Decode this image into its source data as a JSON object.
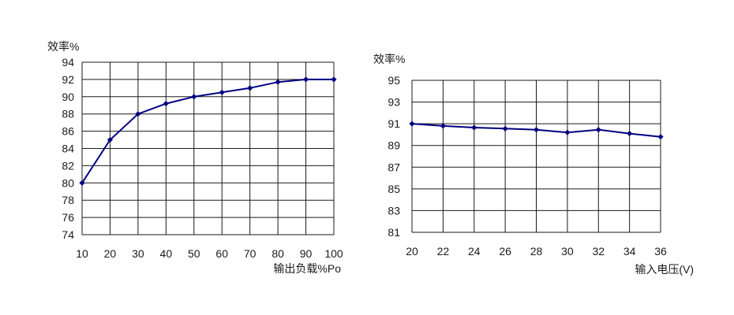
{
  "chart_data": [
    {
      "type": "line",
      "ylabel": "效率%",
      "xlabel": "输出负载%Po",
      "x": [
        10,
        20,
        30,
        40,
        50,
        60,
        70,
        80,
        90,
        100
      ],
      "x_tick_labels": [
        "10",
        "20",
        "30",
        "40",
        "50",
        "60",
        "70",
        "80",
        "90",
        "100"
      ],
      "y_tick_labels": [
        "74",
        "76",
        "78",
        "80",
        "82",
        "84",
        "86",
        "88",
        "90",
        "92",
        "94"
      ],
      "ylim": [
        74,
        94
      ],
      "grid": true,
      "legend": "none",
      "series": [
        {
          "values": [
            80,
            85,
            88,
            89.2,
            90,
            90.5,
            91,
            91.7,
            92,
            92
          ],
          "color": "#000080"
        }
      ]
    },
    {
      "type": "line",
      "ylabel": "效率%",
      "xlabel": "输入电压(V)",
      "x": [
        20,
        22,
        24,
        26,
        28,
        30,
        32,
        34,
        36
      ],
      "x_tick_labels": [
        "20",
        "22",
        "24",
        "26",
        "28",
        "30",
        "32",
        "34",
        "36"
      ],
      "y_tick_labels": [
        "81",
        "83",
        "85",
        "87",
        "89",
        "91",
        "93",
        "95"
      ],
      "ylim": [
        81,
        95
      ],
      "grid": true,
      "legend": "none",
      "series": [
        {
          "values": [
            91.0,
            90.8,
            90.65,
            90.55,
            90.45,
            90.2,
            90.45,
            90.1,
            89.8
          ],
          "color": "#000080"
        }
      ]
    }
  ]
}
